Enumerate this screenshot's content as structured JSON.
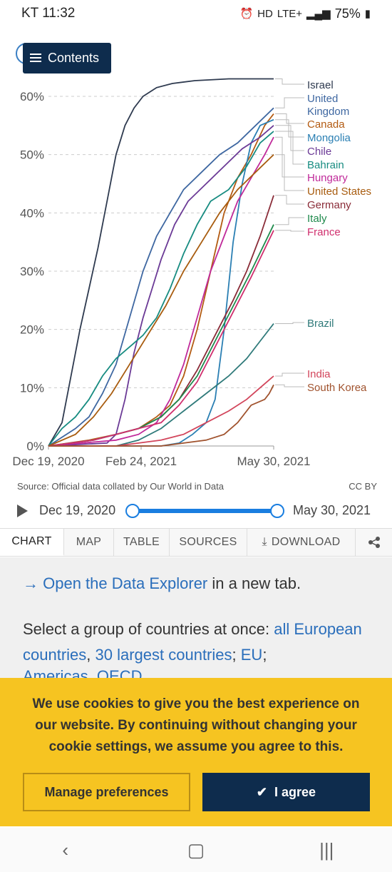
{
  "status": {
    "time": "KT 11:32",
    "battery": "75%",
    "signal_text": "LTE+",
    "hd": "HD"
  },
  "contents_label": "Contents",
  "chart_data": {
    "type": "line",
    "x_ticks": [
      "Dec 19, 2020",
      "Feb 24, 2021",
      "May 30, 2021"
    ],
    "y_ticks": [
      "0%",
      "10%",
      "20%",
      "30%",
      "40%",
      "50%",
      "60%"
    ],
    "ylim": [
      0,
      63
    ],
    "series": [
      {
        "name": "Israel",
        "color": "#2e3a4f",
        "points": [
          [
            0,
            0
          ],
          [
            6,
            4
          ],
          [
            10,
            12
          ],
          [
            14,
            20
          ],
          [
            18,
            27
          ],
          [
            22,
            34
          ],
          [
            26,
            42
          ],
          [
            30,
            50
          ],
          [
            34,
            55
          ],
          [
            38,
            58
          ],
          [
            42,
            60
          ],
          [
            48,
            61.5
          ],
          [
            55,
            62.2
          ],
          [
            65,
            62.7
          ],
          [
            80,
            63
          ],
          [
            100,
            63
          ]
        ]
      },
      {
        "name": "United Kingdom",
        "color": "#3e67a1",
        "points": [
          [
            0,
            0
          ],
          [
            12,
            3
          ],
          [
            18,
            5
          ],
          [
            24,
            9
          ],
          [
            30,
            14
          ],
          [
            36,
            22
          ],
          [
            42,
            30
          ],
          [
            48,
            36
          ],
          [
            54,
            40
          ],
          [
            60,
            44
          ],
          [
            68,
            47
          ],
          [
            76,
            50
          ],
          [
            84,
            52
          ],
          [
            92,
            55
          ],
          [
            100,
            58
          ]
        ]
      },
      {
        "name": "Canada",
        "color": "#b35b12",
        "points": [
          [
            0,
            0
          ],
          [
            18,
            1
          ],
          [
            30,
            2
          ],
          [
            40,
            3
          ],
          [
            48,
            5
          ],
          [
            54,
            7
          ],
          [
            60,
            12
          ],
          [
            66,
            20
          ],
          [
            72,
            30
          ],
          [
            78,
            40
          ],
          [
            84,
            46
          ],
          [
            90,
            50
          ],
          [
            96,
            55
          ],
          [
            100,
            57
          ]
        ]
      },
      {
        "name": "Mongolia",
        "color": "#2a7fb3",
        "points": [
          [
            0,
            0
          ],
          [
            50,
            0
          ],
          [
            58,
            0.5
          ],
          [
            64,
            2
          ],
          [
            70,
            4
          ],
          [
            74,
            8
          ],
          [
            78,
            20
          ],
          [
            82,
            35
          ],
          [
            86,
            45
          ],
          [
            90,
            52
          ],
          [
            94,
            55
          ],
          [
            100,
            56
          ]
        ]
      },
      {
        "name": "Chile",
        "color": "#6b3a96",
        "points": [
          [
            0,
            0
          ],
          [
            26,
            0.5
          ],
          [
            30,
            2
          ],
          [
            34,
            8
          ],
          [
            38,
            16
          ],
          [
            42,
            22
          ],
          [
            46,
            27
          ],
          [
            50,
            32
          ],
          [
            56,
            38
          ],
          [
            62,
            42
          ],
          [
            70,
            45
          ],
          [
            78,
            48
          ],
          [
            86,
            51
          ],
          [
            94,
            53
          ],
          [
            100,
            55
          ]
        ]
      },
      {
        "name": "Bahrain",
        "color": "#178c81",
        "points": [
          [
            0,
            0
          ],
          [
            6,
            3
          ],
          [
            12,
            5
          ],
          [
            18,
            8
          ],
          [
            24,
            12
          ],
          [
            30,
            15
          ],
          [
            36,
            17
          ],
          [
            42,
            19
          ],
          [
            48,
            22
          ],
          [
            54,
            27
          ],
          [
            60,
            33
          ],
          [
            66,
            38
          ],
          [
            72,
            42
          ],
          [
            80,
            44
          ],
          [
            88,
            48
          ],
          [
            94,
            52
          ],
          [
            100,
            54
          ]
        ]
      },
      {
        "name": "Hungary",
        "color": "#c02a9a",
        "points": [
          [
            0,
            0
          ],
          [
            30,
            1
          ],
          [
            40,
            2
          ],
          [
            48,
            4
          ],
          [
            54,
            8
          ],
          [
            60,
            14
          ],
          [
            66,
            22
          ],
          [
            72,
            30
          ],
          [
            78,
            36
          ],
          [
            84,
            42
          ],
          [
            90,
            46
          ],
          [
            96,
            50
          ],
          [
            100,
            53
          ]
        ]
      },
      {
        "name": "United States",
        "color": "#a85c0f",
        "points": [
          [
            0,
            0
          ],
          [
            12,
            2
          ],
          [
            20,
            5
          ],
          [
            28,
            9
          ],
          [
            36,
            14
          ],
          [
            44,
            19
          ],
          [
            52,
            24
          ],
          [
            60,
            30
          ],
          [
            68,
            35
          ],
          [
            76,
            40
          ],
          [
            84,
            44
          ],
          [
            92,
            47
          ],
          [
            100,
            50
          ]
        ]
      },
      {
        "name": "Germany",
        "color": "#8a2c38",
        "points": [
          [
            0,
            0
          ],
          [
            20,
            1
          ],
          [
            30,
            2
          ],
          [
            40,
            3
          ],
          [
            50,
            5
          ],
          [
            58,
            8
          ],
          [
            66,
            13
          ],
          [
            74,
            19
          ],
          [
            82,
            25
          ],
          [
            88,
            30
          ],
          [
            94,
            36
          ],
          [
            100,
            43
          ]
        ]
      },
      {
        "name": "Italy",
        "color": "#1f8a4c",
        "points": [
          [
            0,
            0
          ],
          [
            20,
            1
          ],
          [
            30,
            2
          ],
          [
            40,
            3
          ],
          [
            50,
            5
          ],
          [
            58,
            8
          ],
          [
            66,
            12
          ],
          [
            74,
            18
          ],
          [
            82,
            24
          ],
          [
            90,
            30
          ],
          [
            100,
            38
          ]
        ]
      },
      {
        "name": "France",
        "color": "#d02f6e",
        "points": [
          [
            0,
            0
          ],
          [
            20,
            1
          ],
          [
            30,
            2
          ],
          [
            40,
            3
          ],
          [
            50,
            4
          ],
          [
            58,
            7
          ],
          [
            66,
            11
          ],
          [
            74,
            17
          ],
          [
            82,
            23
          ],
          [
            90,
            29
          ],
          [
            100,
            37
          ]
        ]
      },
      {
        "name": "Brazil",
        "color": "#2f7a7a",
        "points": [
          [
            0,
            0
          ],
          [
            30,
            0
          ],
          [
            40,
            1
          ],
          [
            50,
            3
          ],
          [
            60,
            6
          ],
          [
            70,
            9
          ],
          [
            80,
            12
          ],
          [
            88,
            15
          ],
          [
            94,
            18
          ],
          [
            100,
            21
          ]
        ]
      },
      {
        "name": "India",
        "color": "#d2455b",
        "points": [
          [
            0,
            0
          ],
          [
            30,
            0
          ],
          [
            40,
            0.5
          ],
          [
            50,
            1
          ],
          [
            60,
            2
          ],
          [
            70,
            4
          ],
          [
            80,
            6
          ],
          [
            88,
            8
          ],
          [
            94,
            10
          ],
          [
            100,
            12
          ]
        ]
      },
      {
        "name": "South Korea",
        "color": "#a0522d",
        "points": [
          [
            0,
            0
          ],
          [
            50,
            0
          ],
          [
            60,
            0.5
          ],
          [
            70,
            1
          ],
          [
            78,
            2
          ],
          [
            84,
            4
          ],
          [
            90,
            7
          ],
          [
            96,
            8
          ],
          [
            98,
            9
          ],
          [
            100,
            10.5
          ]
        ]
      }
    ],
    "labels": [
      {
        "text": "Israel",
        "color": "#2e3a4f"
      },
      {
        "text": "United",
        "color": "#3e67a1"
      },
      {
        "text": "Kingdom",
        "color": "#3e67a1"
      },
      {
        "text": "Canada",
        "color": "#b35b12"
      },
      {
        "text": "Mongolia",
        "color": "#2a7fb3"
      },
      {
        "text": "Chile",
        "color": "#6b3a96"
      },
      {
        "text": "Bahrain",
        "color": "#178c81"
      },
      {
        "text": "Hungary",
        "color": "#c02a9a"
      },
      {
        "text": "United States",
        "color": "#a85c0f"
      },
      {
        "text": "Germany",
        "color": "#8a2c38"
      },
      {
        "text": "Italy",
        "color": "#1f8a4c"
      },
      {
        "text": "France",
        "color": "#d02f6e"
      },
      {
        "text": "Brazil",
        "color": "#2f7a7a"
      },
      {
        "text": "India",
        "color": "#d2455b"
      },
      {
        "text": "South Korea",
        "color": "#a0522d"
      }
    ]
  },
  "source_text": "Source: Official data collated by Our World in Data",
  "license": "CC BY",
  "timeline": {
    "start": "Dec 19, 2020",
    "end": "May 30, 2021"
  },
  "tabs": [
    "CHART",
    "MAP",
    "TABLE",
    "SOURCES",
    "DOWNLOAD"
  ],
  "explorer": {
    "arrow": "→ ",
    "link": "Open the Data Explorer",
    "rest": " in a new tab."
  },
  "select_group": {
    "prefix": "Select a group of countries at once: ",
    "all": "all",
    "european": "European countries",
    "largest": "30 largest countries",
    "eu": "EU",
    "partial": "Americas, OECD"
  },
  "cookie": {
    "text": "We use cookies to give you the best experience on our website. By continuing without changing your cookie settings, we assume you agree to this.",
    "manage": "Manage preferences",
    "agree": "I agree"
  }
}
